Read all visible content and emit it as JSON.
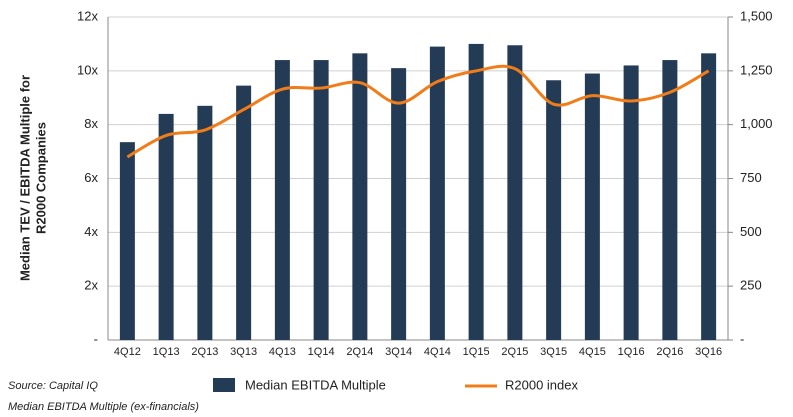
{
  "chart_data": {
    "type": "bar_line",
    "ylabel_lines": [
      "Median TEV / EBITDA Multiple for",
      "R2000 Companies"
    ],
    "categories": [
      "4Q12",
      "1Q13",
      "2Q13",
      "3Q13",
      "4Q13",
      "1Q14",
      "2Q14",
      "3Q14",
      "4Q14",
      "1Q15",
      "2Q15",
      "3Q15",
      "4Q15",
      "1Q16",
      "2Q16",
      "3Q16"
    ],
    "series": [
      {
        "name": "Median EBITDA Multiple",
        "color": "#243b55",
        "type": "bar",
        "values": [
          7.35,
          8.4,
          8.7,
          9.45,
          10.4,
          10.4,
          10.65,
          10.1,
          10.9,
          11.0,
          10.95,
          9.65,
          9.9,
          10.2,
          10.4,
          10.65
        ]
      },
      {
        "name": "R2000 index",
        "color": "#f07d1a",
        "type": "line",
        "axis": "y2",
        "values": [
          850,
          950,
          975,
          1070,
          1165,
          1170,
          1195,
          1100,
          1200,
          1250,
          1260,
          1095,
          1135,
          1110,
          1150,
          1250
        ]
      }
    ],
    "ylim": [
      0,
      12
    ],
    "yticks": [
      {
        "value": 0,
        "label": "-"
      },
      {
        "value": 2,
        "label": "2x"
      },
      {
        "value": 4,
        "label": "4x"
      },
      {
        "value": 6,
        "label": "6x"
      },
      {
        "value": 8,
        "label": "8x"
      },
      {
        "value": 10,
        "label": "10x"
      },
      {
        "value": 12,
        "label": "12x"
      }
    ],
    "y2lim": [
      0,
      1500
    ],
    "y2ticks": [
      {
        "value": 0,
        "label": "-"
      },
      250,
      500,
      750,
      {
        "value": 1000,
        "label": "1,000"
      },
      {
        "value": 1250,
        "label": "1,250"
      },
      {
        "value": 1500,
        "label": "1,500"
      }
    ],
    "grid": true,
    "notes": [
      "Source:  Capital IQ",
      "Median EBITDA Multiple (ex-financials)"
    ]
  }
}
